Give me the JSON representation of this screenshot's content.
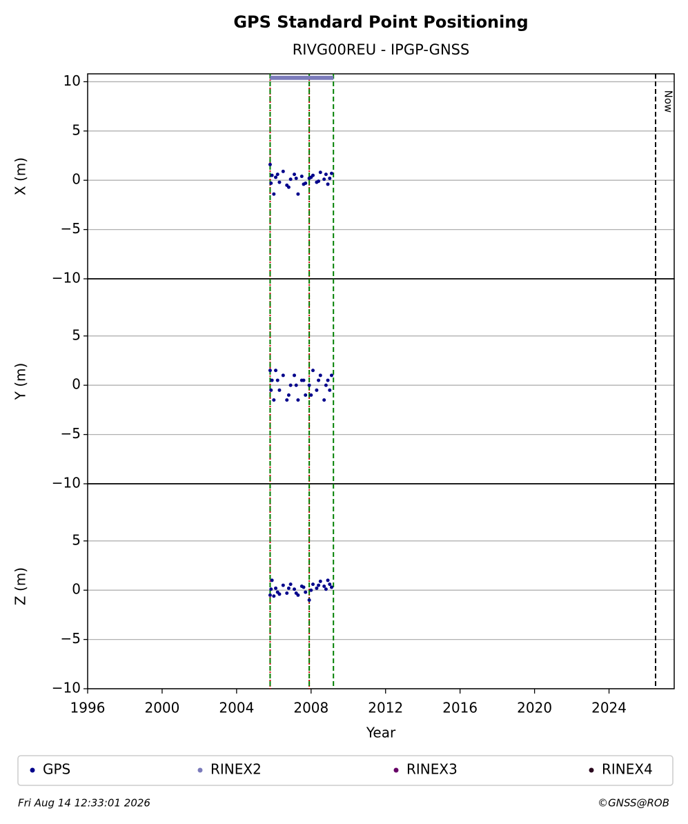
{
  "chart_data": {
    "type": "scatter",
    "title": "GPS Standard Point Positioning",
    "subtitle": "RIVG00REU - IPGP-GNSS",
    "xlabel": "Year",
    "xlim": [
      1996,
      2027.5
    ],
    "xticks": [
      1996,
      2000,
      2004,
      2008,
      2012,
      2016,
      2020,
      2024
    ],
    "grid": true,
    "events": [
      {
        "x": 2005.8,
        "color": "#cc0000"
      },
      {
        "x": 2005.8,
        "color": "#008000"
      },
      {
        "x": 2007.9,
        "color": "#cc0000"
      },
      {
        "x": 2007.9,
        "color": "#008000"
      },
      {
        "x": 2009.2,
        "color": "#008000"
      }
    ],
    "now": {
      "x": 2026.5,
      "label": "Now"
    },
    "rinex2_span": {
      "start": 2005.8,
      "end": 2009.2,
      "y": 10.4,
      "color": "#7b7bbb"
    },
    "legend": [
      {
        "name": "GPS",
        "color": "#00008b"
      },
      {
        "name": "RINEX2",
        "color": "#7b7bbb"
      },
      {
        "name": "RINEX3",
        "color": "#660066"
      },
      {
        "name": "RINEX4",
        "color": "#2b0a1f"
      }
    ],
    "panels": [
      {
        "ylabel": "X (m)",
        "ylim": [
          -10,
          10.8
        ],
        "yticks": [
          {
            "value": -10,
            "label": "−10"
          },
          {
            "value": -5,
            "label": "−5"
          },
          0,
          5,
          10
        ],
        "series": [
          {
            "name": "GPS",
            "color": "#00008b",
            "x": [
              2005.8,
              2005.9,
              2006.0,
              2006.1,
              2006.3,
              2006.5,
              2006.7,
              2006.9,
              2007.1,
              2007.3,
              2007.5,
              2007.7,
              2007.9,
              2008.1,
              2008.3,
              2008.5,
              2008.7,
              2008.9,
              2009.1,
              2005.85,
              2006.2,
              2006.8,
              2007.2,
              2007.6,
              2008.0,
              2008.4,
              2008.8,
              2009.0
            ],
            "values": [
              1.6,
              0.5,
              -1.4,
              0.3,
              -0.2,
              0.9,
              -0.5,
              0.1,
              0.6,
              -1.4,
              0.4,
              -0.3,
              0.2,
              0.5,
              -0.2,
              0.8,
              0.1,
              -0.4,
              0.7,
              -0.3,
              0.6,
              -0.7,
              0.2,
              -0.4,
              0.3,
              -0.1,
              0.6,
              0.2
            ]
          }
        ]
      },
      {
        "ylabel": "Y (m)",
        "ylim": [
          -10,
          10.8
        ],
        "yticks": [
          {
            "value": -10,
            "label": "−10"
          },
          {
            "value": -5,
            "label": "−5"
          },
          0,
          5
        ],
        "series": [
          {
            "name": "GPS",
            "color": "#00008b",
            "x": [
              2005.8,
              2005.9,
              2006.0,
              2006.1,
              2006.3,
              2006.5,
              2006.7,
              2006.9,
              2007.1,
              2007.3,
              2007.5,
              2007.7,
              2007.9,
              2008.1,
              2008.3,
              2008.5,
              2008.7,
              2008.9,
              2009.1,
              2005.85,
              2006.2,
              2006.8,
              2007.2,
              2007.6,
              2008.0,
              2008.4,
              2008.8,
              2009.0
            ],
            "values": [
              1.5,
              0.5,
              -1.5,
              1.5,
              -0.5,
              1.0,
              -1.5,
              0.0,
              1.0,
              -1.5,
              0.5,
              -1.0,
              0.0,
              1.5,
              -0.5,
              1.0,
              -1.5,
              0.5,
              1.0,
              -0.5,
              0.5,
              -1.0,
              0.0,
              0.5,
              -1.0,
              0.5,
              0.0,
              -0.5
            ]
          }
        ]
      },
      {
        "ylabel": "Z (m)",
        "ylim": [
          -10,
          10.8
        ],
        "yticks": [
          {
            "value": -10,
            "label": "−10"
          },
          {
            "value": -5,
            "label": "−5"
          },
          0,
          5
        ],
        "series": [
          {
            "name": "GPS",
            "color": "#00008b",
            "x": [
              2005.8,
              2005.9,
              2006.0,
              2006.1,
              2006.3,
              2006.5,
              2006.7,
              2006.9,
              2007.1,
              2007.3,
              2007.5,
              2007.7,
              2007.9,
              2008.1,
              2008.3,
              2008.5,
              2008.7,
              2008.9,
              2009.1,
              2005.85,
              2006.2,
              2006.8,
              2007.2,
              2007.6,
              2008.0,
              2008.4,
              2008.8,
              2009.0
            ],
            "values": [
              -0.5,
              1.0,
              -0.6,
              0.2,
              -0.4,
              0.5,
              -0.3,
              0.6,
              0.1,
              -0.5,
              0.4,
              -0.2,
              -1.0,
              0.6,
              0.2,
              0.9,
              0.4,
              1.0,
              0.3,
              0.1,
              -0.2,
              0.2,
              -0.3,
              0.3,
              0.0,
              0.5,
              0.1,
              0.6
            ]
          }
        ]
      }
    ],
    "timestamp": "Fri Aug 14 12:33:01 2026",
    "credit": "©GNSS@ROB"
  }
}
